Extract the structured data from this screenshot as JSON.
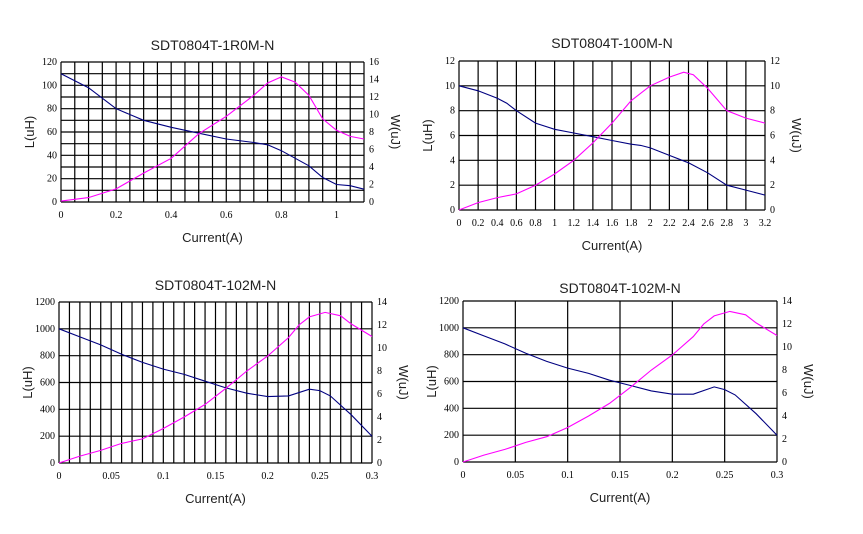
{
  "chart_data": [
    {
      "type": "line",
      "title": "SDT0804T-1R0M-N",
      "xlabel": "Current(A)",
      "ylabel": "L(uH)",
      "y2label": "W(uJ)",
      "xlim": [
        0,
        1.1
      ],
      "ylim": [
        0,
        120
      ],
      "y2lim": [
        0,
        16
      ],
      "grid": true,
      "xticks": [
        0,
        0.2,
        0.4,
        0.6,
        0.8,
        1
      ],
      "xtick_labels": [
        "0",
        "0.2",
        "0.4",
        "0.6",
        "0.8",
        "1"
      ],
      "yticks": [
        0,
        20,
        40,
        60,
        80,
        100,
        120
      ],
      "y2ticks": [
        0,
        2,
        4,
        6,
        8,
        10,
        12,
        14,
        16
      ],
      "series": [
        {
          "name": "L(uH)",
          "axis": "left",
          "color": "#000080",
          "x": [
            0,
            0.1,
            0.2,
            0.3,
            0.4,
            0.5,
            0.6,
            0.7,
            0.75,
            0.8,
            0.9,
            0.95,
            1.0,
            1.05,
            1.1
          ],
          "y": [
            110,
            98,
            80,
            70,
            64,
            59,
            54,
            51,
            49,
            44,
            31,
            21,
            15,
            14,
            11
          ]
        },
        {
          "name": "W(uJ)",
          "axis": "right",
          "color": "#ff00ff",
          "x": [
            0,
            0.1,
            0.2,
            0.3,
            0.4,
            0.5,
            0.6,
            0.7,
            0.75,
            0.8,
            0.85,
            0.9,
            0.95,
            1.0,
            1.05,
            1.1
          ],
          "y": [
            0.1,
            0.5,
            1.5,
            3.3,
            5,
            7.8,
            9.8,
            12.2,
            13.6,
            14.3,
            13.7,
            12.2,
            9.5,
            8.2,
            7.5,
            7.2
          ]
        }
      ]
    },
    {
      "type": "line",
      "title": "SDT0804T-100M-N",
      "xlabel": "Current(A)",
      "ylabel": "L(uH)",
      "y2label": "W(uJ)",
      "xlim": [
        0,
        3.2
      ],
      "ylim": [
        0,
        12
      ],
      "y2lim": [
        0,
        12
      ],
      "grid": true,
      "xticks": [
        0,
        0.2,
        0.4,
        0.6,
        0.8,
        1,
        1.2,
        1.4,
        1.6,
        1.8,
        2,
        2.2,
        2.4,
        2.6,
        2.8,
        3,
        3.2
      ],
      "xtick_labels": [
        "0",
        "0.2",
        "0.4",
        "0.6",
        "0.8",
        "1",
        "1.2",
        "1.4",
        "1.6",
        "1.8",
        "2",
        "2.2",
        "2.4",
        "2.6",
        "2.8",
        "3",
        "3.2"
      ],
      "yticks": [
        0,
        2,
        4,
        6,
        8,
        10,
        12
      ],
      "y2ticks": [
        0,
        2,
        4,
        6,
        8,
        10,
        12
      ],
      "series": [
        {
          "name": "L(uH)",
          "axis": "left",
          "color": "#000080",
          "x": [
            0,
            0.2,
            0.4,
            0.5,
            0.6,
            0.8,
            1,
            1.2,
            1.4,
            1.6,
            1.8,
            1.9,
            2,
            2.2,
            2.4,
            2.6,
            2.8,
            3,
            3.2
          ],
          "y": [
            10,
            9.6,
            9,
            8.6,
            8,
            7,
            6.5,
            6.2,
            5.9,
            5.6,
            5.3,
            5.2,
            5,
            4.4,
            3.8,
            3,
            2,
            1.6,
            1.2
          ]
        },
        {
          "name": "W(uJ)",
          "axis": "right",
          "color": "#ff00ff",
          "x": [
            0,
            0.2,
            0.4,
            0.6,
            0.8,
            1,
            1.2,
            1.4,
            1.6,
            1.8,
            2,
            2.2,
            2.35,
            2.45,
            2.6,
            2.8,
            3,
            3.2
          ],
          "y": [
            0,
            0.6,
            1,
            1.3,
            2,
            2.9,
            4,
            5.4,
            7,
            8.8,
            10,
            10.7,
            11.1,
            10.9,
            9.8,
            8,
            7.4,
            7
          ]
        }
      ]
    },
    {
      "type": "line",
      "title": "SDT0804T-102M-N",
      "xlabel": "Current(A)",
      "ylabel": "L(uH)",
      "y2label": "W(uJ)",
      "xlim": [
        0,
        0.3
      ],
      "ylim": [
        0,
        1200
      ],
      "y2lim": [
        0,
        14
      ],
      "grid": true,
      "xticks": [
        0,
        0.05,
        0.1,
        0.15,
        0.2,
        0.25,
        0.3
      ],
      "xtick_labels": [
        "0",
        "0.05",
        "0.1",
        "0.15",
        "0.2",
        "0.25",
        "0.3"
      ],
      "yticks": [
        0,
        200,
        400,
        600,
        800,
        1000,
        1200
      ],
      "y2ticks": [
        0,
        2,
        4,
        6,
        8,
        10,
        12,
        14
      ],
      "series": [
        {
          "name": "L(uH)",
          "axis": "left",
          "color": "#000080",
          "x": [
            0,
            0.02,
            0.04,
            0.06,
            0.08,
            0.1,
            0.12,
            0.14,
            0.16,
            0.18,
            0.2,
            0.22,
            0.24,
            0.25,
            0.26,
            0.28,
            0.3
          ],
          "y": [
            1000,
            940,
            880,
            810,
            750,
            700,
            660,
            610,
            560,
            520,
            495,
            500,
            550,
            540,
            500,
            360,
            200
          ]
        },
        {
          "name": "W(uJ)",
          "axis": "right",
          "color": "#ff00ff",
          "x": [
            0,
            0.02,
            0.04,
            0.06,
            0.08,
            0.1,
            0.12,
            0.14,
            0.16,
            0.18,
            0.2,
            0.22,
            0.23,
            0.24,
            0.255,
            0.27,
            0.28,
            0.3
          ],
          "y": [
            0,
            0.6,
            1.1,
            1.7,
            2.1,
            3,
            4,
            5.1,
            6.5,
            8,
            9.3,
            10.9,
            12,
            12.7,
            13.1,
            12.8,
            12.1,
            11
          ]
        }
      ]
    },
    {
      "type": "line",
      "title": "SDT0804T-102M-N",
      "xlabel": "Current(A)",
      "ylabel": "L(uH)",
      "y2label": "W(uJ)",
      "xlim": [
        0,
        0.3
      ],
      "ylim": [
        0,
        1200
      ],
      "y2lim": [
        0,
        14
      ],
      "grid": true,
      "xticks": [
        0,
        0.05,
        0.1,
        0.15,
        0.2,
        0.25,
        0.3
      ],
      "xtick_labels": [
        "0",
        "0.05",
        "0.1",
        "0.15",
        "0.2",
        "0.25",
        "0.3"
      ],
      "yticks": [
        0,
        200,
        400,
        600,
        800,
        1000,
        1200
      ],
      "y2ticks": [
        0,
        2,
        4,
        6,
        8,
        10,
        12,
        14
      ],
      "series": [
        {
          "name": "L(uH)",
          "axis": "left",
          "color": "#000080",
          "x": [
            0,
            0.02,
            0.04,
            0.06,
            0.08,
            0.1,
            0.12,
            0.14,
            0.16,
            0.18,
            0.2,
            0.22,
            0.24,
            0.25,
            0.26,
            0.28,
            0.3
          ],
          "y": [
            1000,
            940,
            880,
            810,
            750,
            700,
            660,
            610,
            570,
            530,
            505,
            505,
            560,
            540,
            500,
            360,
            200
          ]
        },
        {
          "name": "W(uJ)",
          "axis": "right",
          "color": "#ff00ff",
          "x": [
            0,
            0.02,
            0.04,
            0.06,
            0.08,
            0.1,
            0.12,
            0.14,
            0.16,
            0.18,
            0.2,
            0.22,
            0.23,
            0.24,
            0.255,
            0.27,
            0.28,
            0.3
          ],
          "y": [
            0,
            0.6,
            1.1,
            1.7,
            2.2,
            3,
            4,
            5.1,
            6.5,
            8,
            9.3,
            10.9,
            12,
            12.7,
            13.1,
            12.8,
            12.1,
            11
          ]
        }
      ]
    }
  ]
}
